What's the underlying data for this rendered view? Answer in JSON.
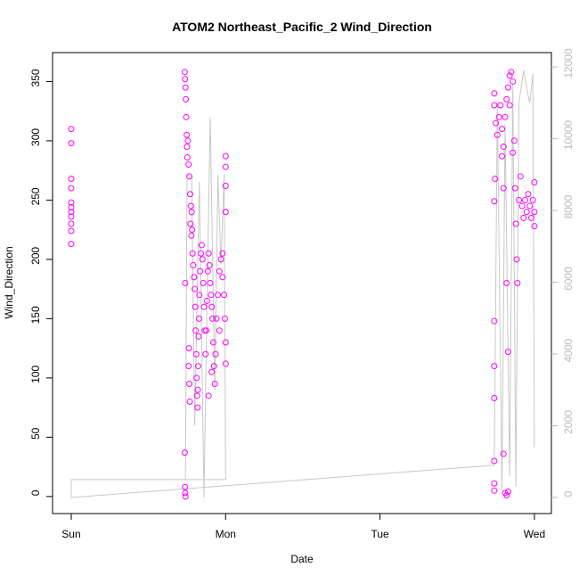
{
  "chart_data": {
    "type": "scatter",
    "title": "ATOM2 Northeast_Pacific_2 Wind_Direction",
    "x_label": "Date",
    "y_label": "Wind_Direction",
    "xlim": [
      -0.121,
      3.11
    ],
    "xticks": [
      {
        "value": 0,
        "label": "Sun"
      },
      {
        "value": 1,
        "label": "Mon"
      },
      {
        "value": 2,
        "label": "Tue"
      },
      {
        "value": 3,
        "label": "Wed"
      }
    ],
    "ylim": [
      -14.4,
      374.4
    ],
    "yticks": [
      0,
      50,
      100,
      150,
      200,
      250,
      300,
      350
    ],
    "y2lim": [
      -447,
      12400
    ],
    "y2ticks": [
      0,
      2000,
      4000,
      6000,
      8000,
      10000,
      12000
    ],
    "series": [
      {
        "type": "line",
        "axis": "y2",
        "color": "#c8c8c8",
        "x": [
          0,
          0.74,
          0.75,
          0.78,
          0.8,
          0.83,
          0.86,
          0.88,
          0.9,
          0.93,
          0.95,
          0.97,
          0.99,
          1.0,
          0,
          0,
          2.74,
          2.76,
          2.79,
          2.81,
          2.84,
          2.86,
          2.88,
          2.9,
          2.93,
          2.96,
          2.97,
          2.99,
          3.0
        ],
        "values": [
          500,
          500,
          9000,
          8900,
          2000,
          8800,
          0,
          5500,
          10600,
          3000,
          9000,
          6500,
          9000,
          500,
          500,
          0,
          900,
          11000,
          200,
          10400,
          600,
          11500,
          300,
          11000,
          11900,
          11200,
          11000,
          11800,
          1400
        ]
      },
      {
        "type": "scatter",
        "color": "#ff00ff",
        "x": [
          0,
          0,
          0,
          0,
          0,
          0,
          0,
          0,
          0,
          0,
          0,
          0.735,
          0.737,
          0.74,
          0.742,
          0.745,
          0.748,
          0.75,
          0.752,
          0.738,
          0.735,
          0.737,
          0.738,
          0.74,
          0.755,
          0.76,
          0.765,
          0.77,
          0.775,
          0.78,
          0.772,
          0.778,
          0.76,
          0.762,
          0.765,
          0.768,
          0.783,
          0.786,
          0.79,
          0.795,
          0.8,
          0.803,
          0.806,
          0.81,
          0.812,
          0.815,
          0.818,
          0.82,
          0.822,
          0.825,
          0.828,
          0.83,
          0.835,
          0.84,
          0.845,
          0.85,
          0.855,
          0.86,
          0.865,
          0.87,
          0.875,
          0.88,
          0.885,
          0.89,
          0.895,
          0.9,
          0.905,
          0.91,
          0.915,
          0.92,
          0.925,
          0.93,
          0.935,
          0.94,
          0.95,
          0.96,
          0.97,
          0.98,
          0.99,
          0.995,
          1.0,
          1.0,
          1.0,
          1.0,
          1.0,
          1.0,
          0.98,
          0.96,
          0.89,
          0.91,
          2.74,
          2.74,
          2.74,
          2.74,
          2.74,
          2.74,
          2.74,
          2.74,
          2.74,
          2.745,
          2.75,
          2.76,
          2.77,
          2.78,
          2.79,
          2.8,
          2.81,
          2.82,
          2.83,
          2.84,
          2.85,
          2.86,
          2.87,
          2.875,
          2.88,
          2.885,
          2.89,
          2.9,
          2.91,
          2.92,
          2.93,
          2.94,
          2.95,
          2.96,
          2.97,
          2.98,
          2.99,
          3.0,
          3.0,
          3.0,
          2.81,
          2.82,
          2.83,
          2.8,
          2.83,
          2.82,
          2.84,
          2.86,
          2.8,
          2.79
        ],
        "values": [
          310,
          298,
          268,
          260,
          248,
          244,
          240,
          236,
          230,
          224,
          213,
          358,
          352,
          345,
          335,
          320,
          305,
          295,
          286,
          180,
          37,
          8,
          3,
          0,
          300,
          280,
          270,
          255,
          245,
          240,
          230,
          220,
          110,
          125,
          95,
          80,
          225,
          205,
          195,
          185,
          175,
          160,
          140,
          120,
          100,
          85,
          75,
          90,
          110,
          135,
          150,
          170,
          190,
          205,
          212,
          200,
          180,
          160,
          140,
          120,
          140,
          165,
          190,
          205,
          195,
          180,
          170,
          160,
          150,
          130,
          110,
          95,
          120,
          150,
          170,
          190,
          200,
          185,
          170,
          150,
          130,
          112,
          240,
          262,
          287,
          278,
          205,
          140,
          85,
          105,
          340,
          330,
          249,
          148,
          110,
          83,
          30,
          11,
          5,
          268,
          315,
          305,
          320,
          330,
          310,
          295,
          320,
          335,
          345,
          355,
          358,
          350,
          300,
          260,
          230,
          200,
          180,
          250,
          270,
          245,
          235,
          250,
          240,
          255,
          245,
          235,
          250,
          265,
          240,
          228,
          3,
          1,
          4,
          36,
          122,
          180,
          330,
          290,
          260,
          287
        ]
      }
    ]
  }
}
